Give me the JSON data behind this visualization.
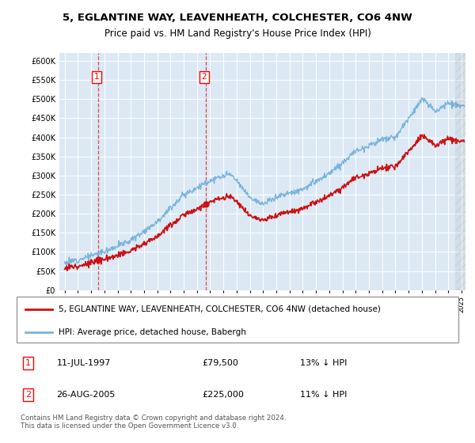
{
  "title_line1": "5, EGLANTINE WAY, LEAVENHEATH, COLCHESTER, CO6 4NW",
  "title_line2": "Price paid vs. HM Land Registry's House Price Index (HPI)",
  "hpi_color": "#7ab4dc",
  "price_color": "#cc1111",
  "marker_color": "#cc1111",
  "plot_bg_color": "#dce9f5",
  "grid_color": "#ffffff",
  "ylim": [
    0,
    620000
  ],
  "yticks": [
    0,
    50000,
    100000,
    150000,
    200000,
    250000,
    300000,
    350000,
    400000,
    450000,
    500000,
    550000,
    600000
  ],
  "ytick_labels": [
    "£0",
    "£50K",
    "£100K",
    "£150K",
    "£200K",
    "£250K",
    "£300K",
    "£350K",
    "£400K",
    "£450K",
    "£500K",
    "£550K",
    "£600K"
  ],
  "legend_label_red": "5, EGLANTINE WAY, LEAVENHEATH, COLCHESTER, CO6 4NW (detached house)",
  "legend_label_blue": "HPI: Average price, detached house, Babergh",
  "sale1_label": "1",
  "sale1_date": "11-JUL-1997",
  "sale1_price": "£79,500",
  "sale1_hpi": "13% ↓ HPI",
  "sale2_label": "2",
  "sale2_date": "26-AUG-2005",
  "sale2_price": "£225,000",
  "sale2_hpi": "11% ↓ HPI",
  "footer": "Contains HM Land Registry data © Crown copyright and database right 2024.\nThis data is licensed under the Open Government Licence v3.0.",
  "sale1_year": 1997.53,
  "sale1_value": 79500,
  "sale2_year": 2005.65,
  "sale2_value": 225000,
  "xmin": 1995.0,
  "xmax": 2025.3
}
